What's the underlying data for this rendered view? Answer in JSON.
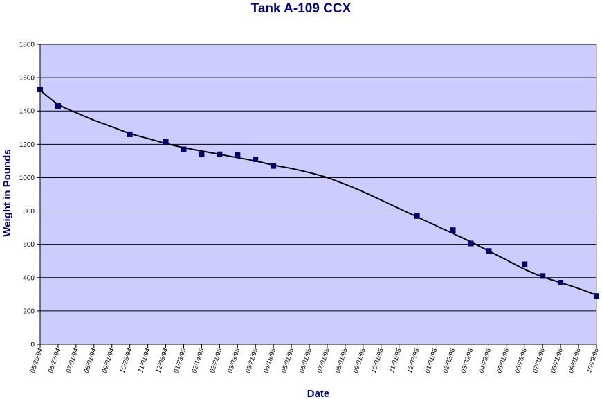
{
  "chart_data": {
    "type": "scatter",
    "title": "Tank A-109 CCX",
    "xlabel": "Date",
    "ylabel": "Weight in Pounds",
    "ylim": [
      0,
      1800
    ],
    "yticks": [
      0,
      200,
      400,
      600,
      800,
      1000,
      1200,
      1400,
      1600,
      1800
    ],
    "x_tick_labels": [
      "05/29/94",
      "06/27/94",
      "07/01/94",
      "08/01/94",
      "09/01/94",
      "10/26/94",
      "11/01/94",
      "12/06/94",
      "01/23/95",
      "02/14/95",
      "02/21/95",
      "03/03/95",
      "03/21/95",
      "04/18/95",
      "05/01/95",
      "06/01/95",
      "07/01/95",
      "08/01/95",
      "09/01/95",
      "10/01/95",
      "11/01/95",
      "12/07/95",
      "01/01/96",
      "02/02/96",
      "03/30/96",
      "04/29/96",
      "05/01/96",
      "06/26/96",
      "07/31/96",
      "08/21/96",
      "09/01/96",
      "10/29/96"
    ],
    "grid": true,
    "legend": "none",
    "plot_background": "#ccccff",
    "marker_color": "#000066",
    "series": [
      {
        "points": [
          {
            "x": "05/29/94",
            "y": 1530
          },
          {
            "x": "06/27/94",
            "y": 1430
          },
          {
            "x": "10/26/94",
            "y": 1260
          },
          {
            "x": "12/06/94",
            "y": 1215
          },
          {
            "x": "01/23/95",
            "y": 1170
          },
          {
            "x": "02/14/95",
            "y": 1140
          },
          {
            "x": "02/21/95",
            "y": 1140
          },
          {
            "x": "03/03/95",
            "y": 1135
          },
          {
            "x": "03/21/95",
            "y": 1110
          },
          {
            "x": "04/18/95",
            "y": 1070
          },
          {
            "x": "12/07/95",
            "y": 770
          },
          {
            "x": "02/02/96",
            "y": 685
          },
          {
            "x": "03/30/96",
            "y": 605
          },
          {
            "x": "04/29/96",
            "y": 560
          },
          {
            "x": "06/26/96",
            "y": 480
          },
          {
            "x": "07/31/96",
            "y": 410
          },
          {
            "x": "08/21/96",
            "y": 370
          },
          {
            "x": "10/29/96",
            "y": 290
          }
        ]
      }
    ],
    "trendline": {
      "x": [
        "05/29/94",
        "06/27/94",
        "07/01/94",
        "08/01/94",
        "09/01/94",
        "10/26/94",
        "11/01/94",
        "12/06/94",
        "01/23/95",
        "02/14/95",
        "02/21/95",
        "03/03/95",
        "03/21/95",
        "04/18/95",
        "05/01/95",
        "06/01/95",
        "07/01/95",
        "08/01/95",
        "09/01/95",
        "10/01/95",
        "11/01/95",
        "12/07/95",
        "01/01/96",
        "02/02/96",
        "03/30/96",
        "04/29/96",
        "05/01/96",
        "06/26/96",
        "07/31/96",
        "08/21/96",
        "09/01/96",
        "10/29/96"
      ],
      "y": [
        1525,
        1440,
        1390,
        1345,
        1305,
        1265,
        1235,
        1205,
        1180,
        1160,
        1140,
        1120,
        1100,
        1075,
        1055,
        1030,
        1000,
        960,
        915,
        865,
        815,
        765,
        715,
        665,
        615,
        560,
        505,
        450,
        405,
        370,
        335,
        295
      ]
    }
  }
}
